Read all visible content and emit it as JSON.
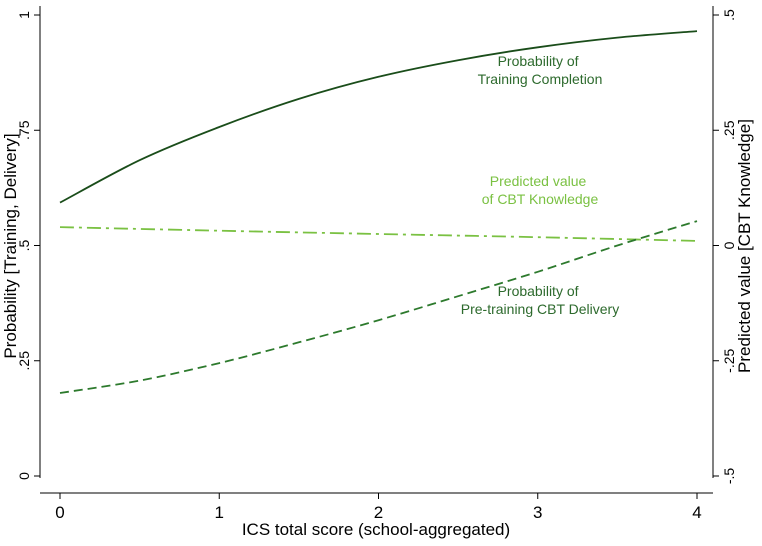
{
  "chart_data": {
    "type": "line",
    "xlabel": "ICS total score (school-aggregated)",
    "ylabel_left": "Probability [Training, Delivery]",
    "ylabel_right": "Predicted value [CBT Knowledge]",
    "xlim": [
      0,
      4
    ],
    "ylim_left": [
      0,
      1
    ],
    "ylim_right": [
      -0.5,
      0.5
    ],
    "x_ticks": [
      "0",
      "1",
      "2",
      "3",
      "4"
    ],
    "y_left_ticks": [
      "0",
      ".25",
      ".5",
      ".75",
      "1"
    ],
    "y_right_ticks": [
      "-.5",
      "-.25",
      "0",
      ".25",
      ".5"
    ],
    "grid": false,
    "series": [
      {
        "axis": "left",
        "style": "solid",
        "color": "#1a4d1a",
        "x": [
          0,
          0.5,
          1,
          1.5,
          2,
          2.5,
          3,
          3.5,
          4
        ],
        "y": [
          0.593,
          0.685,
          0.757,
          0.818,
          0.866,
          0.902,
          0.93,
          0.951,
          0.965
        ]
      },
      {
        "axis": "right",
        "style": "dash-dot",
        "color": "#7ac142",
        "x": [
          0,
          1,
          2,
          3,
          4
        ],
        "y": [
          0.04,
          0.032,
          0.025,
          0.018,
          0.01
        ]
      },
      {
        "axis": "left",
        "style": "dashed",
        "color": "#2d7a2d",
        "x": [
          0,
          0.5,
          1,
          1.5,
          2,
          2.5,
          3,
          3.5,
          4
        ],
        "y": [
          0.18,
          0.207,
          0.245,
          0.29,
          0.338,
          0.39,
          0.443,
          0.5,
          0.553
        ]
      }
    ],
    "annotations": [
      {
        "lines": [
          "Probability of",
          "Training Completion"
        ],
        "color": "#2d6a2d"
      },
      {
        "lines": [
          "Predicted value",
          "of CBT Knowledge"
        ],
        "color": "#7ac142"
      },
      {
        "lines": [
          "Probability of",
          "Pre-training CBT Delivery"
        ],
        "color": "#2d6a2d"
      }
    ]
  }
}
